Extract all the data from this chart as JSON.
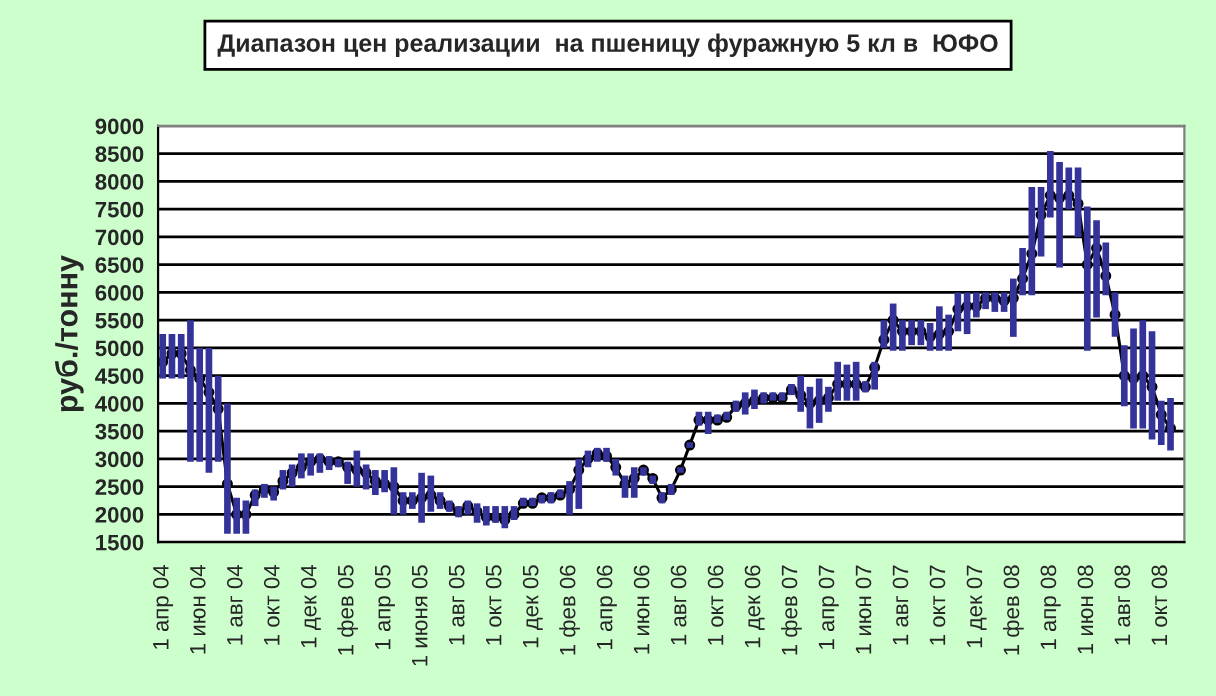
{
  "chart_data": {
    "type": "line",
    "title": "Диапазон цен реализации  на пшеницу фуражную 5 кл в  ЮФО",
    "ylabel": "руб./тонну",
    "categories": [
      "1 апр 04",
      null,
      null,
      null,
      "1 июн 04",
      null,
      null,
      null,
      "1 авг 04",
      null,
      null,
      null,
      "1 окт 04",
      null,
      null,
      null,
      "1 дек 04",
      null,
      null,
      null,
      "1 фев 05",
      null,
      null,
      null,
      "1 апр 05",
      null,
      null,
      null,
      "1 июня 05",
      null,
      null,
      null,
      "1 авг 05",
      null,
      null,
      null,
      "1 окт 05",
      null,
      null,
      null,
      "1 дек 05",
      null,
      null,
      null,
      "1 фев 06",
      null,
      null,
      null,
      "1 апр 06",
      null,
      null,
      null,
      "1 июн 06",
      null,
      null,
      null,
      "1 авг 06",
      null,
      null,
      null,
      "1 окт 06",
      null,
      null,
      null,
      "1 дек 06",
      null,
      null,
      null,
      "1 фев 07",
      null,
      null,
      null,
      "1 апр 07",
      null,
      null,
      null,
      "1 июн 07",
      null,
      null,
      null,
      "1 авг 07",
      null,
      null,
      null,
      "1 окт 07",
      null,
      null,
      null,
      "1 дек 07",
      null,
      null,
      null,
      "1 фев 08",
      null,
      null,
      null,
      "1 апр 08",
      null,
      null,
      null,
      "1 июн 08",
      null,
      null,
      null,
      "1 авг 08",
      null,
      null,
      null,
      "1 окт 08",
      null,
      null
    ],
    "series": [
      {
        "color": "#000000",
        "values": [
          4750,
          4900,
          4900,
          4600,
          4450,
          4200,
          3900,
          2550,
          2000,
          2000,
          2350,
          2450,
          2400,
          2600,
          2750,
          2850,
          2950,
          3000,
          2950,
          2950,
          2850,
          2800,
          2750,
          2600,
          2550,
          2500,
          2250,
          2250,
          2300,
          2350,
          2250,
          2150,
          2050,
          2150,
          2050,
          1950,
          1950,
          1900,
          2000,
          2200,
          2200,
          2300,
          2300,
          2350,
          2450,
          2800,
          3000,
          3100,
          3050,
          2850,
          2550,
          2650,
          2800,
          2650,
          2300,
          2450,
          2800,
          3250,
          3700,
          3700,
          3700,
          3750,
          3950,
          4000,
          4050,
          4100,
          4100,
          4100,
          4250,
          4150,
          4000,
          4050,
          4100,
          4350,
          4350,
          4350,
          4300,
          4650,
          5150,
          5500,
          5300,
          5300,
          5300,
          5200,
          5250,
          5300,
          5700,
          5750,
          5750,
          5900,
          5900,
          5850,
          5900,
          6250,
          6700,
          7400,
          7750,
          7700,
          7750,
          7600,
          6500,
          6800,
          6300,
          5600,
          4500,
          4450,
          4500,
          4300,
          3800,
          3550,
          null
        ],
        "errors": [
          [
            4450,
            5250
          ],
          [
            4450,
            5250
          ],
          [
            4450,
            5250
          ],
          [
            2950,
            5500
          ],
          [
            2950,
            5000
          ],
          [
            2750,
            5000
          ],
          [
            2950,
            4500
          ],
          [
            1650,
            4000
          ],
          [
            1650,
            2300
          ],
          [
            1650,
            2250
          ],
          [
            2150,
            2450
          ],
          [
            2300,
            2550
          ],
          [
            2250,
            2500
          ],
          [
            2450,
            2800
          ],
          [
            2500,
            2900
          ],
          [
            2650,
            3100
          ],
          [
            2700,
            3100
          ],
          [
            2750,
            3100
          ],
          [
            2800,
            3050
          ],
          [
            2850,
            3000
          ],
          [
            2550,
            2950
          ],
          [
            2500,
            3150
          ],
          [
            2450,
            2900
          ],
          [
            2350,
            2800
          ],
          [
            2400,
            2800
          ],
          [
            2000,
            2850
          ],
          [
            2000,
            2400
          ],
          [
            2100,
            2400
          ],
          [
            1850,
            2750
          ],
          [
            2050,
            2700
          ],
          [
            2100,
            2400
          ],
          [
            2050,
            2250
          ],
          [
            1950,
            2150
          ],
          [
            2000,
            2250
          ],
          [
            1850,
            2200
          ],
          [
            1800,
            2150
          ],
          [
            1850,
            2150
          ],
          [
            1750,
            2150
          ],
          [
            1900,
            2150
          ],
          [
            2150,
            2300
          ],
          [
            2150,
            2300
          ],
          [
            2200,
            2350
          ],
          [
            2200,
            2400
          ],
          [
            2300,
            2450
          ],
          [
            2000,
            2600
          ],
          [
            2100,
            3000
          ],
          [
            2850,
            3150
          ],
          [
            2950,
            3200
          ],
          [
            2950,
            3200
          ],
          [
            2700,
            3000
          ],
          [
            2300,
            2700
          ],
          [
            2300,
            2850
          ],
          [
            2700,
            2850
          ],
          [
            2550,
            2700
          ],
          [
            2200,
            2400
          ],
          [
            2350,
            2550
          ],
          [
            2750,
            2850
          ],
          [
            3200,
            3300
          ],
          [
            3600,
            3850
          ],
          [
            3450,
            3850
          ],
          [
            3650,
            3800
          ],
          [
            3700,
            3850
          ],
          [
            3850,
            4050
          ],
          [
            3800,
            4200
          ],
          [
            3900,
            4250
          ],
          [
            4000,
            4200
          ],
          [
            4050,
            4200
          ],
          [
            4050,
            4200
          ],
          [
            4150,
            4350
          ],
          [
            3850,
            4500
          ],
          [
            3550,
            4300
          ],
          [
            3650,
            4450
          ],
          [
            3850,
            4300
          ],
          [
            4050,
            4750
          ],
          [
            4050,
            4700
          ],
          [
            4050,
            4750
          ],
          [
            4200,
            4400
          ],
          [
            4250,
            4750
          ],
          [
            5000,
            5500
          ],
          [
            4950,
            5800
          ],
          [
            4950,
            5500
          ],
          [
            5050,
            5500
          ],
          [
            5050,
            5500
          ],
          [
            4950,
            5450
          ],
          [
            4950,
            5750
          ],
          [
            4950,
            5600
          ],
          [
            5300,
            6000
          ],
          [
            5250,
            6000
          ],
          [
            5550,
            6000
          ],
          [
            5700,
            6000
          ],
          [
            5650,
            6000
          ],
          [
            5650,
            6000
          ],
          [
            5200,
            6250
          ],
          [
            5950,
            6800
          ],
          [
            5950,
            7900
          ],
          [
            6650,
            7900
          ],
          [
            7350,
            8550
          ],
          [
            6450,
            8350
          ],
          [
            7500,
            8250
          ],
          [
            7000,
            8250
          ],
          [
            4950,
            7550
          ],
          [
            5550,
            7300
          ],
          [
            5950,
            6900
          ],
          [
            5200,
            6000
          ],
          [
            3950,
            5050
          ],
          [
            3550,
            5350
          ],
          [
            3550,
            5500
          ],
          [
            3350,
            5300
          ],
          [
            3250,
            4050
          ],
          [
            3150,
            4100
          ],
          null
        ]
      }
    ],
    "ylim": [
      1500,
      9000
    ],
    "yticks": [
      1500,
      2000,
      2500,
      3000,
      3500,
      4000,
      4500,
      5000,
      5500,
      6000,
      6500,
      7000,
      7500,
      8000,
      8500,
      9000
    ],
    "grid": "y",
    "marker": "circle",
    "line_style": "solid"
  }
}
